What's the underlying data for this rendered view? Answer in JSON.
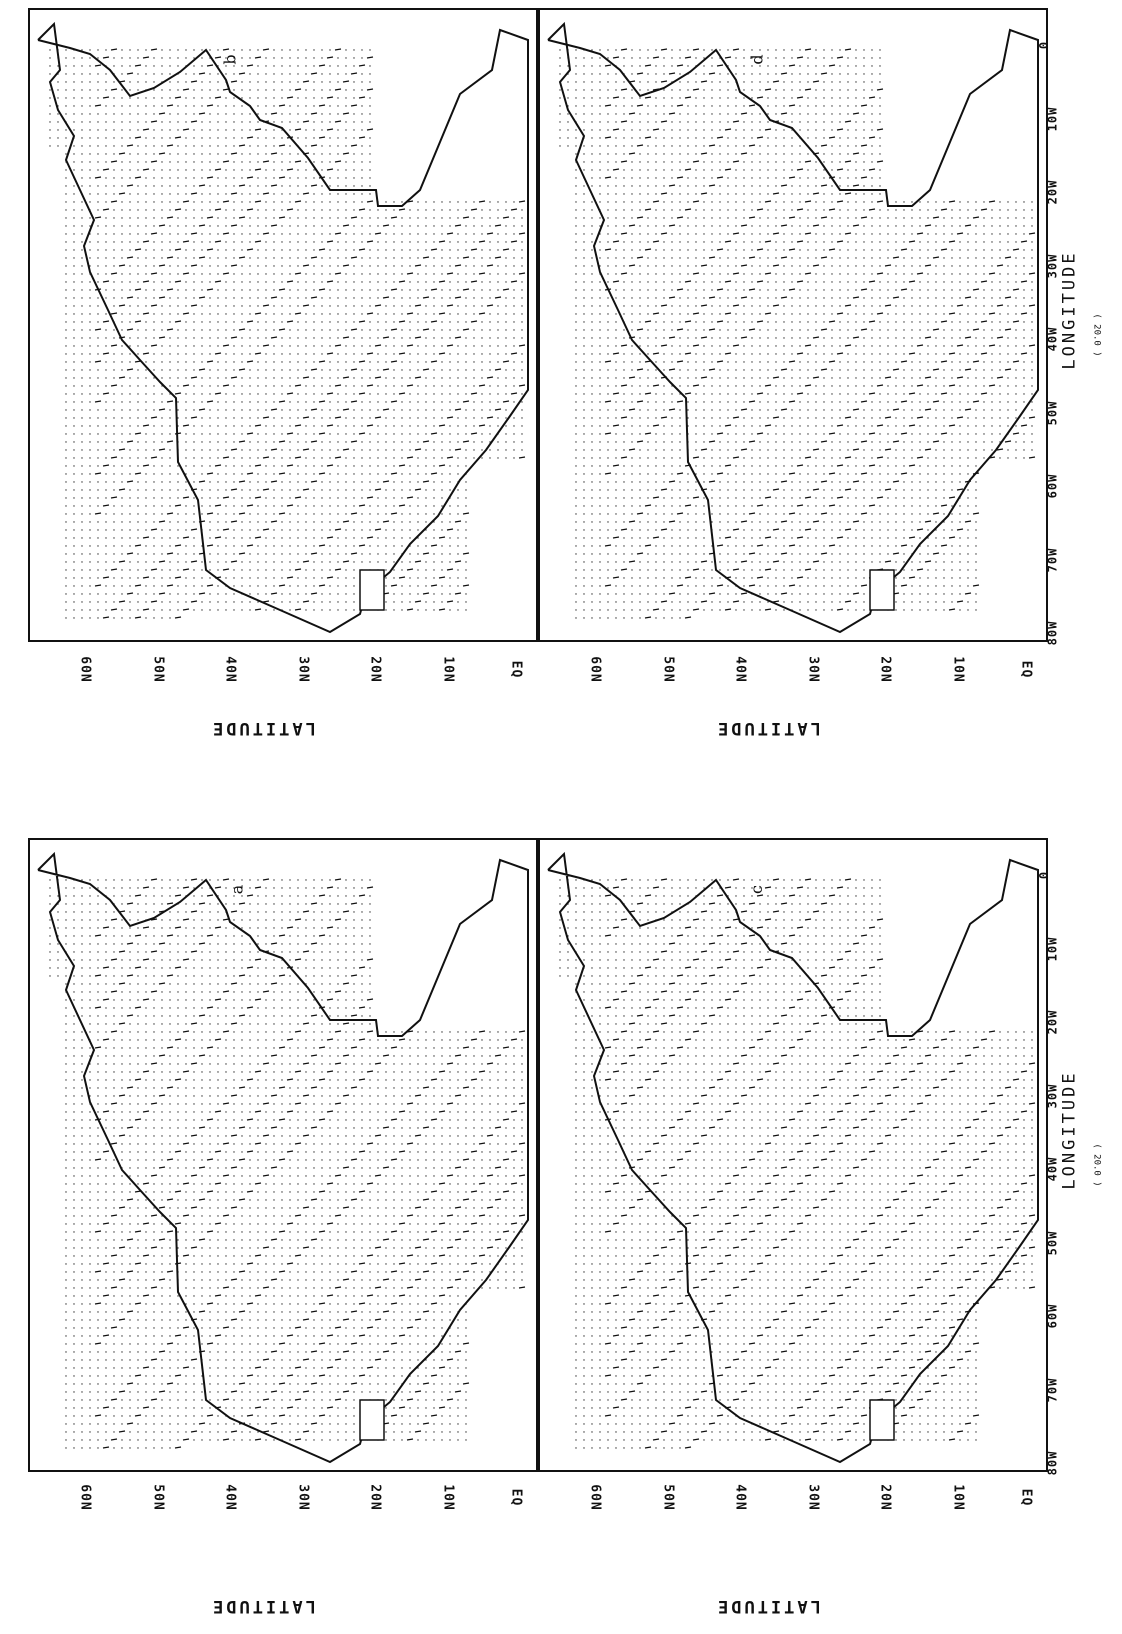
{
  "panels": [
    {
      "id": "a",
      "letter": "a",
      "has_scale": true
    },
    {
      "id": "b",
      "letter": "b",
      "has_scale": true
    },
    {
      "id": "c",
      "letter": "c",
      "has_scale": false
    },
    {
      "id": "d",
      "letter": "d",
      "has_scale": false
    }
  ],
  "axes": {
    "latitude_label": "LATITUDE",
    "longitude_label": "LONGITUDE",
    "latitude_ticks": [
      "60N",
      "50N",
      "40N",
      "30N",
      "20N",
      "10N",
      "EQ"
    ],
    "longitude_ticks": [
      "80W",
      "70W",
      "60W",
      "50W",
      "40W",
      "30W",
      "20W",
      "10W",
      "0"
    ]
  },
  "scale_label": "( 20.0 )",
  "colors": {
    "ink": "#111111",
    "background": "#ffffff"
  }
}
